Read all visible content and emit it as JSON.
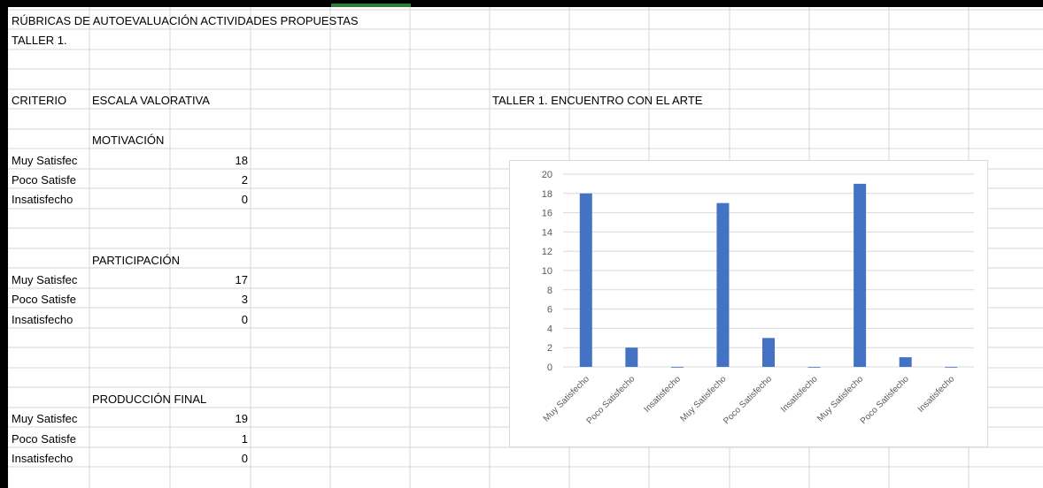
{
  "sheet": {
    "title": "RÚBRICAS DE AUTOEVALUACIÓN ACTIVIDADES PROPUESTAS",
    "subtitle": "TALLER 1.",
    "header_criterio": "CRITERIO",
    "header_escala": "ESCALA VALORATIVA",
    "sections": [
      {
        "name": "MOTIVACIÓN",
        "rows": [
          {
            "label": "Muy Satisfec",
            "value": "18"
          },
          {
            "label": "Poco Satisfe",
            "value": "2"
          },
          {
            "label": "Insatisfecho",
            "value": "0"
          }
        ]
      },
      {
        "name": "PARTICIPACIÓN",
        "rows": [
          {
            "label": "Muy Satisfec",
            "value": "17"
          },
          {
            "label": "Poco Satisfe",
            "value": "3"
          },
          {
            "label": "Insatisfecho",
            "value": "0"
          }
        ]
      },
      {
        "name": "PRODUCCIÓN FINAL",
        "rows": [
          {
            "label": "Muy Satisfec",
            "value": "19"
          },
          {
            "label": "Poco Satisfe",
            "value": "1"
          },
          {
            "label": "Insatisfecho",
            "value": "0"
          }
        ]
      }
    ],
    "chart_heading": "TALLER 1. ENCUENTRO CON EL ARTE"
  },
  "colors": {
    "bar": "#4472c4",
    "gridline": "#d9d9d9",
    "cell_border": "#d4d4d4"
  },
  "chart_data": {
    "type": "bar",
    "title": "",
    "categories": [
      "Muy Satisfecho",
      "Poco Satisfecho",
      "Insatisfecho",
      "Muy Satisfecho",
      "Poco Satisfecho",
      "Insatisfecho",
      "Muy Satisfecho",
      "Poco Satisfecho",
      "Insatisfecho"
    ],
    "values": [
      18,
      2,
      0,
      17,
      3,
      0,
      19,
      1,
      0
    ],
    "ylim": [
      0,
      20
    ],
    "yticks": [
      0,
      2,
      4,
      6,
      8,
      10,
      12,
      14,
      16,
      18,
      20
    ],
    "grid": true,
    "legend": "none"
  }
}
